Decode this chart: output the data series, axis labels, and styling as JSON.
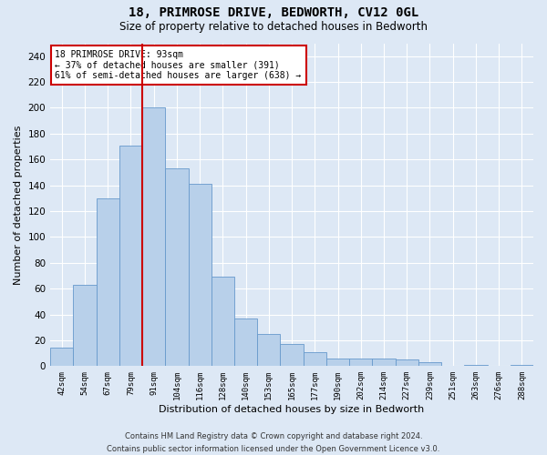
{
  "title": "18, PRIMROSE DRIVE, BEDWORTH, CV12 0GL",
  "subtitle": "Size of property relative to detached houses in Bedworth",
  "xlabel": "Distribution of detached houses by size in Bedworth",
  "ylabel": "Number of detached properties",
  "bar_labels": [
    "42sqm",
    "54sqm",
    "67sqm",
    "79sqm",
    "91sqm",
    "104sqm",
    "116sqm",
    "128sqm",
    "140sqm",
    "153sqm",
    "165sqm",
    "177sqm",
    "190sqm",
    "202sqm",
    "214sqm",
    "227sqm",
    "239sqm",
    "251sqm",
    "263sqm",
    "276sqm",
    "288sqm"
  ],
  "bar_values": [
    14,
    63,
    130,
    171,
    200,
    153,
    141,
    69,
    37,
    25,
    17,
    11,
    6,
    6,
    6,
    5,
    3,
    0,
    1,
    0,
    1
  ],
  "bar_color": "#b8d0ea",
  "bar_edge_color": "#6699cc",
  "highlight_index": 4,
  "highlight_color": "#cc0000",
  "ylim": [
    0,
    250
  ],
  "yticks": [
    0,
    20,
    40,
    60,
    80,
    100,
    120,
    140,
    160,
    180,
    200,
    220,
    240
  ],
  "annotation_line1": "18 PRIMROSE DRIVE: 93sqm",
  "annotation_line2": "← 37% of detached houses are smaller (391)",
  "annotation_line3": "61% of semi-detached houses are larger (638) →",
  "annotation_box_color": "#ffffff",
  "annotation_box_edge": "#cc0000",
  "footer_line1": "Contains HM Land Registry data © Crown copyright and database right 2024.",
  "footer_line2": "Contains public sector information licensed under the Open Government Licence v3.0.",
  "bg_color": "#dde8f5",
  "plot_bg_color": "#dde8f5",
  "grid_color": "#ffffff"
}
